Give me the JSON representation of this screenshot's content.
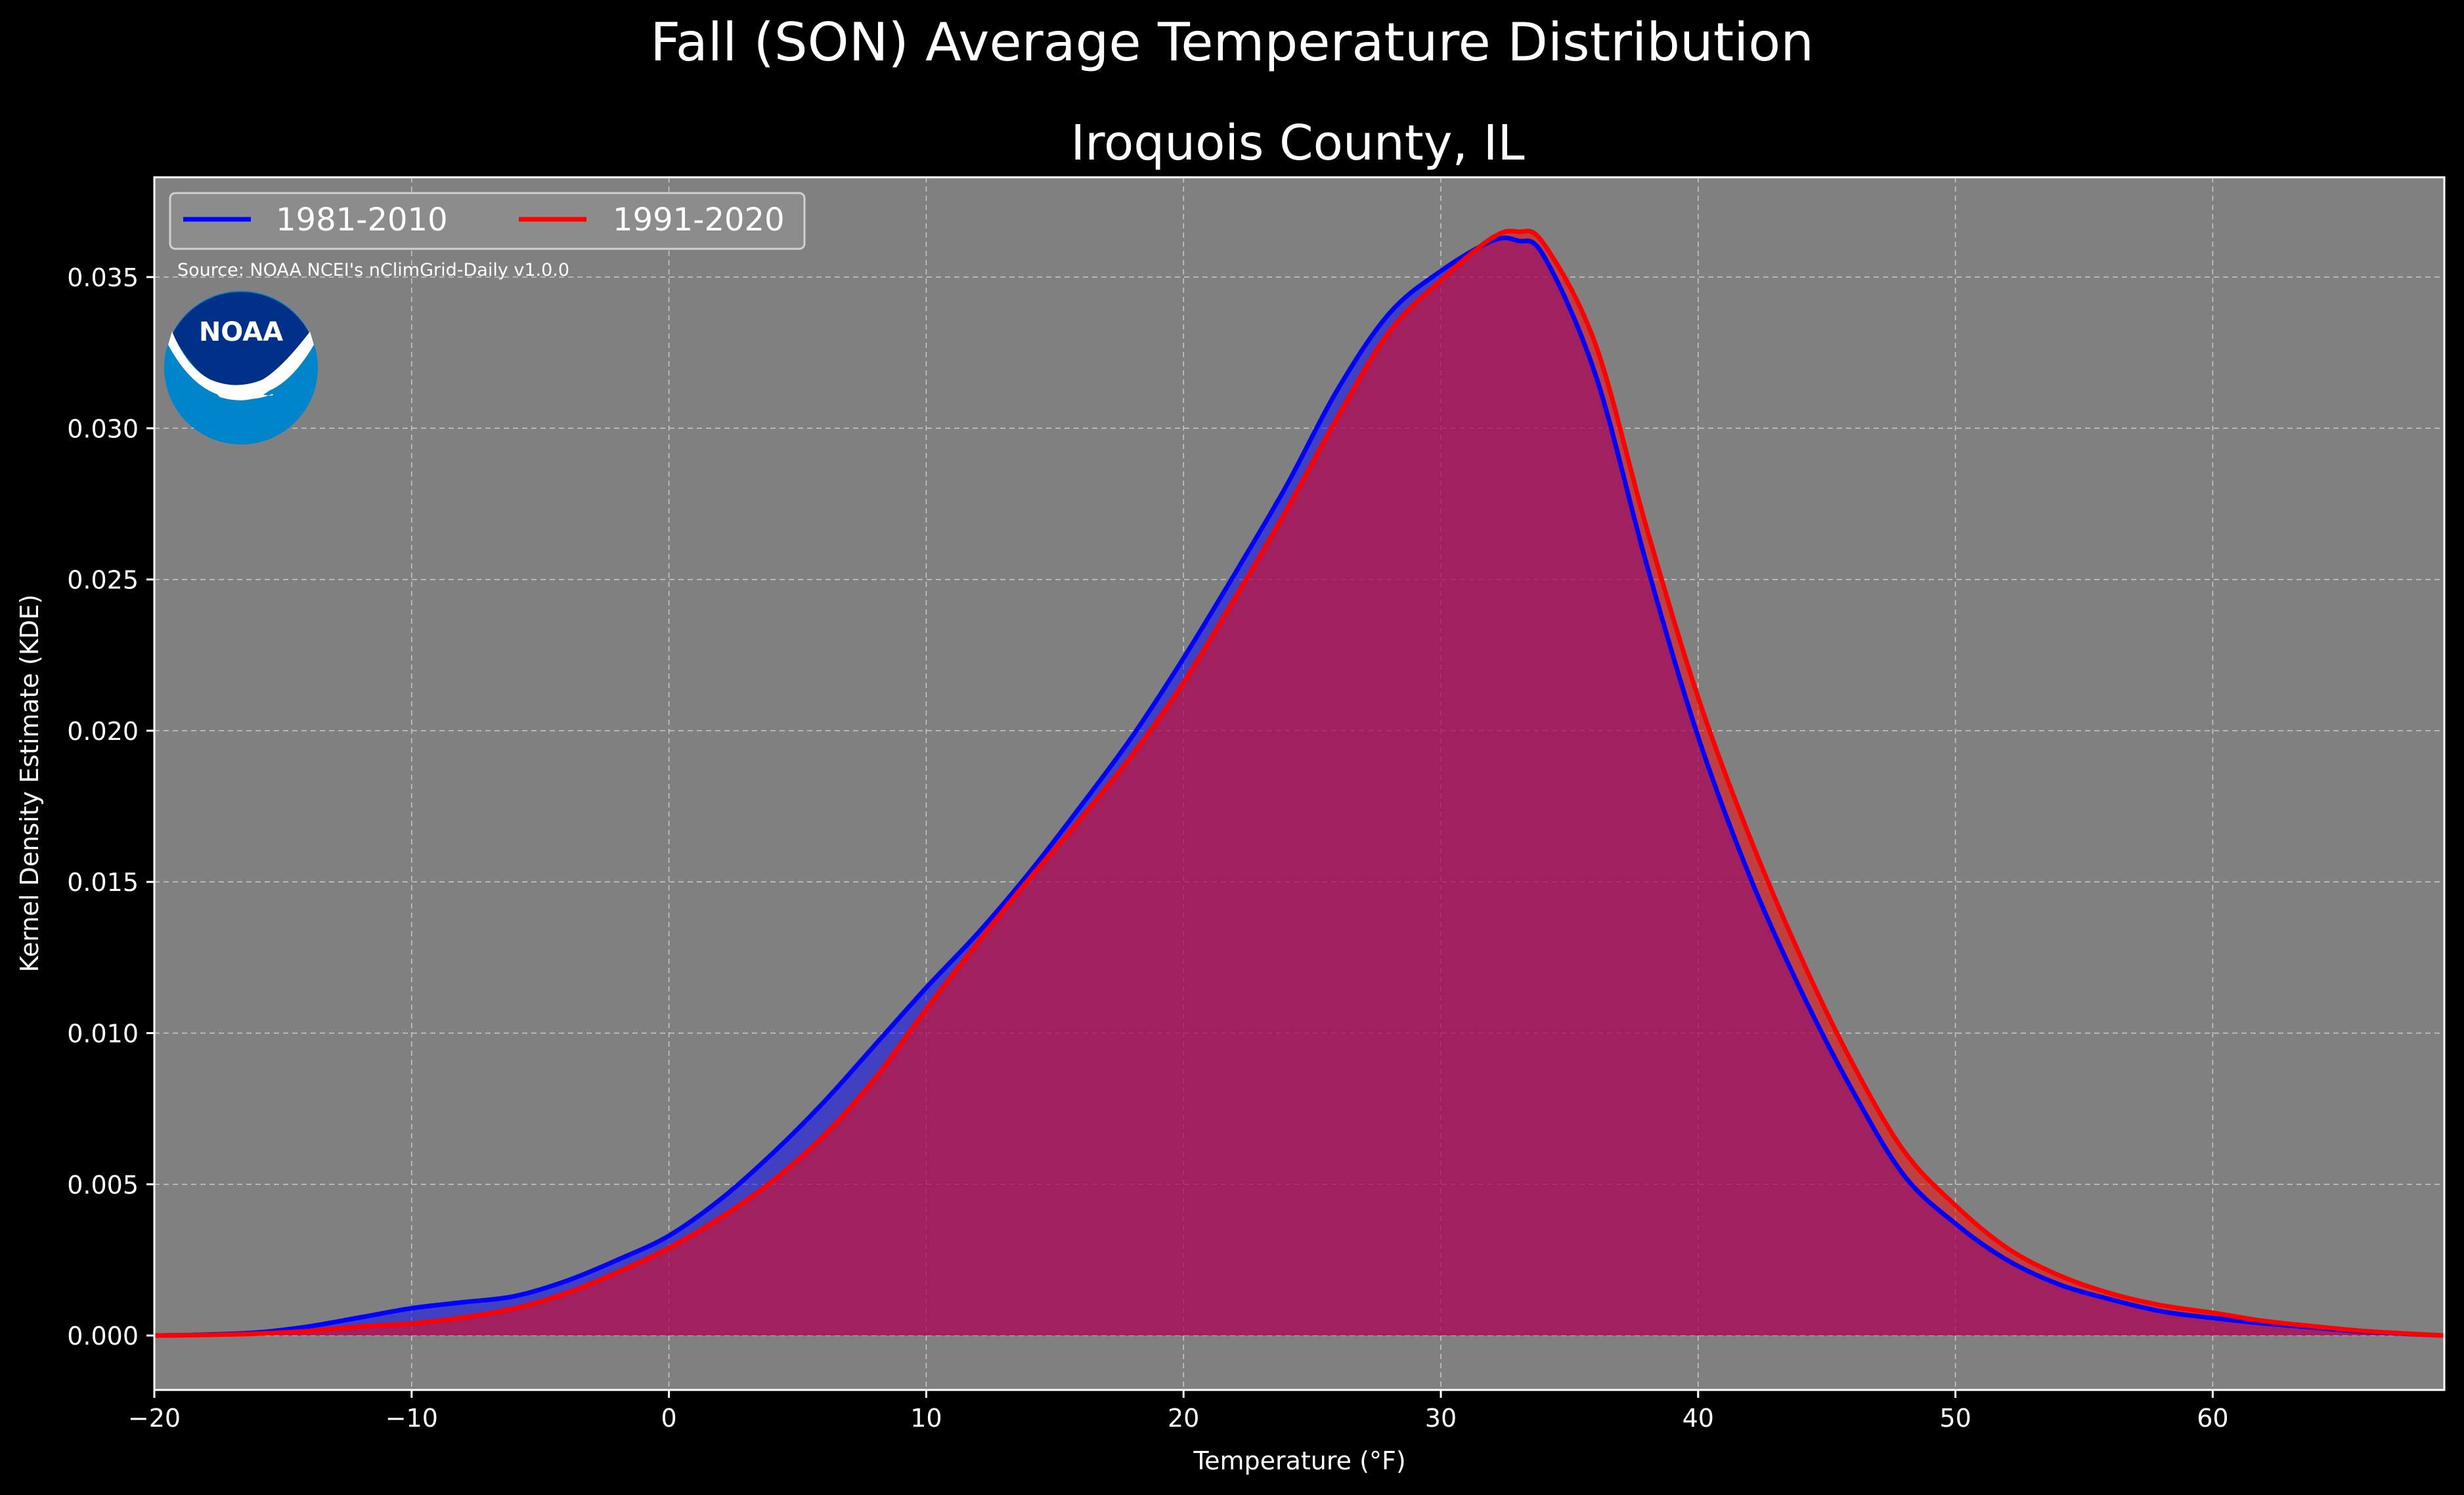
{
  "suptitle": "Fall (SON) Average Temperature Distribution",
  "chart_data": {
    "type": "area",
    "title": "Iroquois County, IL",
    "xlabel": "Temperature (°F)",
    "ylabel": "Kernel Density Estimate (KDE)",
    "xlim": [
      -20,
      69
    ],
    "ylim": [
      -0.0018,
      0.0383
    ],
    "xticks": [
      -20,
      -10,
      0,
      10,
      20,
      30,
      40,
      50,
      60
    ],
    "xtick_labels": [
      "−20",
      "−10",
      "0",
      "10",
      "20",
      "30",
      "40",
      "50",
      "60"
    ],
    "yticks": [
      0,
      0.005,
      0.01,
      0.015,
      0.02,
      0.025,
      0.03,
      0.035
    ],
    "ytick_labels": [
      "0.000",
      "0.005",
      "0.010",
      "0.015",
      "0.020",
      "0.025",
      "0.030",
      "0.035"
    ],
    "grid": true,
    "legend_position": "top-left",
    "series": [
      {
        "name": "1981-2010",
        "color": "#0000ff",
        "points": [
          [
            -20,
            0.0
          ],
          [
            -18,
            3e-05
          ],
          [
            -16,
            0.0001
          ],
          [
            -14,
            0.0003
          ],
          [
            -12,
            0.0006
          ],
          [
            -10,
            0.0009
          ],
          [
            -8,
            0.0011
          ],
          [
            -6,
            0.0013
          ],
          [
            -4,
            0.0018
          ],
          [
            -2,
            0.0025
          ],
          [
            0,
            0.0033
          ],
          [
            2,
            0.0045
          ],
          [
            4,
            0.006
          ],
          [
            6,
            0.0077
          ],
          [
            8,
            0.0096
          ],
          [
            10,
            0.0115
          ],
          [
            12,
            0.0133
          ],
          [
            14,
            0.0153
          ],
          [
            16,
            0.0175
          ],
          [
            18,
            0.0198
          ],
          [
            20,
            0.0224
          ],
          [
            22,
            0.0252
          ],
          [
            24,
            0.0281
          ],
          [
            26,
            0.0313
          ],
          [
            28,
            0.0338
          ],
          [
            30,
            0.0352
          ],
          [
            32,
            0.0362
          ],
          [
            33,
            0.0362
          ],
          [
            34,
            0.0357
          ],
          [
            36,
            0.0318
          ],
          [
            38,
            0.0255
          ],
          [
            40,
            0.0198
          ],
          [
            42,
            0.0152
          ],
          [
            44,
            0.0114
          ],
          [
            46,
            0.0081
          ],
          [
            48,
            0.0053
          ],
          [
            50,
            0.0037
          ],
          [
            52,
            0.0025
          ],
          [
            54,
            0.0017
          ],
          [
            56,
            0.0012
          ],
          [
            58,
            0.0008
          ],
          [
            60,
            0.00058
          ],
          [
            62,
            0.0004
          ],
          [
            64,
            0.00026
          ],
          [
            66,
            0.00012
          ],
          [
            69,
            0.0
          ]
        ]
      },
      {
        "name": "1991-2020",
        "color": "#ff0000",
        "points": [
          [
            -20,
            0.0
          ],
          [
            -18,
            2e-05
          ],
          [
            -16,
            6e-05
          ],
          [
            -14,
            0.00015
          ],
          [
            -12,
            0.0003
          ],
          [
            -10,
            0.0004
          ],
          [
            -8,
            0.0006
          ],
          [
            -6,
            0.0009
          ],
          [
            -4,
            0.0014
          ],
          [
            -2,
            0.0021
          ],
          [
            0,
            0.0029
          ],
          [
            2,
            0.0039
          ],
          [
            4,
            0.0051
          ],
          [
            6,
            0.0066
          ],
          [
            8,
            0.0085
          ],
          [
            10,
            0.0108
          ],
          [
            12,
            0.013
          ],
          [
            14,
            0.0151
          ],
          [
            16,
            0.0171
          ],
          [
            18,
            0.0192
          ],
          [
            20,
            0.0216
          ],
          [
            22,
            0.0244
          ],
          [
            24,
            0.0273
          ],
          [
            26,
            0.0304
          ],
          [
            28,
            0.0332
          ],
          [
            30,
            0.0349
          ],
          [
            32,
            0.0363
          ],
          [
            33,
            0.0365
          ],
          [
            34,
            0.0361
          ],
          [
            36,
            0.0328
          ],
          [
            38,
            0.0267
          ],
          [
            40,
            0.0211
          ],
          [
            42,
            0.0165
          ],
          [
            44,
            0.0125
          ],
          [
            46,
            0.009
          ],
          [
            48,
            0.0061
          ],
          [
            50,
            0.0043
          ],
          [
            52,
            0.0029
          ],
          [
            54,
            0.002
          ],
          [
            56,
            0.0014
          ],
          [
            58,
            0.001
          ],
          [
            60,
            0.00075
          ],
          [
            62,
            0.00048
          ],
          [
            64,
            0.0003
          ],
          [
            66,
            0.00014
          ],
          [
            69,
            0.0
          ]
        ]
      }
    ],
    "annotation": "Source: NOAA NCEI's nClimGrid-Daily v1.0.0",
    "logo_text": "NOAA"
  }
}
